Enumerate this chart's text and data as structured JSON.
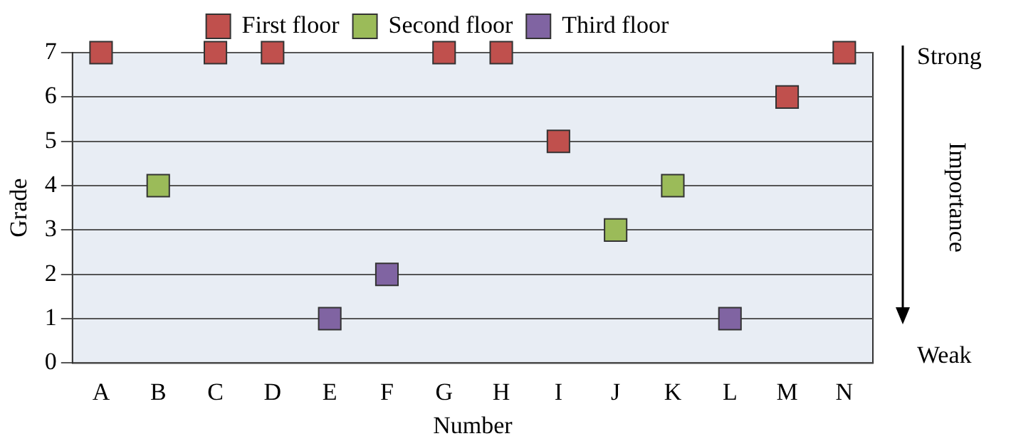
{
  "chart_data": {
    "type": "scatter",
    "xlabel": "Number",
    "ylabel": "Grade",
    "categories": [
      "A",
      "B",
      "C",
      "D",
      "E",
      "F",
      "G",
      "H",
      "I",
      "J",
      "K",
      "L",
      "M",
      "N"
    ],
    "series": [
      {
        "name": "First floor",
        "color": "#c0504d",
        "values": [
          7,
          null,
          7,
          7,
          null,
          null,
          7,
          7,
          5,
          null,
          null,
          null,
          6,
          7
        ]
      },
      {
        "name": "Second floor",
        "color": "#9bbb59",
        "values": [
          null,
          4,
          null,
          null,
          null,
          null,
          null,
          null,
          null,
          3,
          4,
          null,
          null,
          null
        ]
      },
      {
        "name": "Third floor",
        "color": "#8064a2",
        "values": [
          null,
          null,
          null,
          null,
          1,
          2,
          null,
          null,
          null,
          null,
          null,
          1,
          null,
          null
        ]
      }
    ],
    "ylim": [
      0,
      7
    ],
    "yticks": [
      0,
      1,
      2,
      3,
      4,
      5,
      6,
      7
    ],
    "grid": "y",
    "legend": "top",
    "marker": "square",
    "annotations": [
      "Strong",
      "Importance",
      "Weak"
    ]
  }
}
